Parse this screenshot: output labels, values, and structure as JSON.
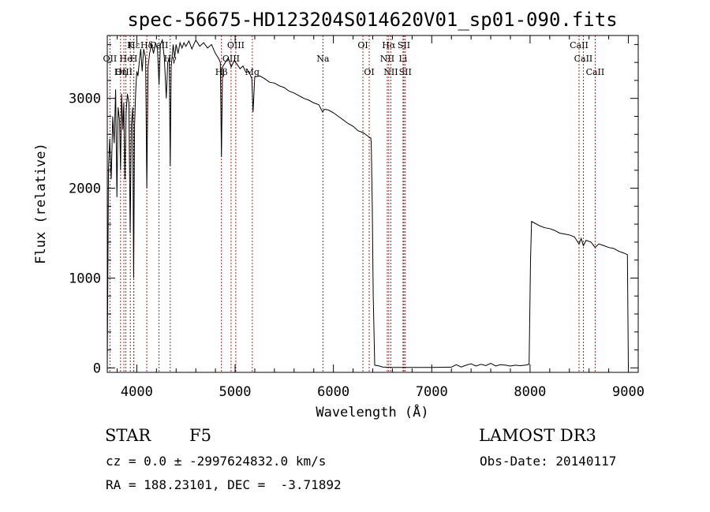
{
  "chart_data": {
    "type": "line",
    "title": "spec-56675-HD123204S014620V01_sp01-090.fits",
    "xlabel": "Wavelength (Å)",
    "ylabel": "Flux (relative)",
    "xlim": [
      3700,
      9100
    ],
    "ylim": [
      -50,
      3700
    ],
    "x_ticks": [
      4000,
      5000,
      6000,
      7000,
      8000,
      9000
    ],
    "y_ticks": [
      0,
      1000,
      2000,
      3000
    ],
    "series": [
      {
        "name": "flux",
        "points": [
          [
            3700,
            0
          ],
          [
            3712,
            2200
          ],
          [
            3725,
            2550
          ],
          [
            3740,
            2100
          ],
          [
            3755,
            2800
          ],
          [
            3770,
            2500
          ],
          [
            3785,
            3100
          ],
          [
            3798,
            1900
          ],
          [
            3810,
            2900
          ],
          [
            3825,
            2750
          ],
          [
            3835,
            2200
          ],
          [
            3845,
            3050
          ],
          [
            3858,
            2650
          ],
          [
            3868,
            2950
          ],
          [
            3880,
            2100
          ],
          [
            3892,
            2850
          ],
          [
            3905,
            3050
          ],
          [
            3920,
            2950
          ],
          [
            3933,
            1500
          ],
          [
            3945,
            2700
          ],
          [
            3958,
            2900
          ],
          [
            3968,
            1000
          ],
          [
            3978,
            2700
          ],
          [
            3990,
            3100
          ],
          [
            4000,
            3300
          ],
          [
            4012,
            3250
          ],
          [
            4025,
            3400
          ],
          [
            4040,
            3550
          ],
          [
            4055,
            3300
          ],
          [
            4070,
            3550
          ],
          [
            4090,
            3450
          ],
          [
            4102,
            2000
          ],
          [
            4115,
            3350
          ],
          [
            4130,
            3500
          ],
          [
            4150,
            3600
          ],
          [
            4170,
            3500
          ],
          [
            4190,
            3620
          ],
          [
            4210,
            3550
          ],
          [
            4226,
            3150
          ],
          [
            4240,
            3600
          ],
          [
            4260,
            3650
          ],
          [
            4280,
            3450
          ],
          [
            4300,
            3000
          ],
          [
            4315,
            3400
          ],
          [
            4330,
            3450
          ],
          [
            4340,
            2250
          ],
          [
            4350,
            3350
          ],
          [
            4370,
            3600
          ],
          [
            4385,
            3450
          ],
          [
            4400,
            3600
          ],
          [
            4420,
            3500
          ],
          [
            4440,
            3620
          ],
          [
            4460,
            3560
          ],
          [
            4480,
            3620
          ],
          [
            4500,
            3580
          ],
          [
            4530,
            3640
          ],
          [
            4560,
            3550
          ],
          [
            4600,
            3650
          ],
          [
            4640,
            3580
          ],
          [
            4680,
            3620
          ],
          [
            4720,
            3560
          ],
          [
            4760,
            3600
          ],
          [
            4800,
            3500
          ],
          [
            4830,
            3450
          ],
          [
            4850,
            3400
          ],
          [
            4861,
            2350
          ],
          [
            4872,
            3350
          ],
          [
            4900,
            3400
          ],
          [
            4930,
            3450
          ],
          [
            4960,
            3350
          ],
          [
            4990,
            3420
          ],
          [
            5020,
            3380
          ],
          [
            5050,
            3330
          ],
          [
            5080,
            3360
          ],
          [
            5110,
            3290
          ],
          [
            5140,
            3300
          ],
          [
            5170,
            3220
          ],
          [
            5183,
            2850
          ],
          [
            5200,
            3240
          ],
          [
            5250,
            3250
          ],
          [
            5300,
            3220
          ],
          [
            5350,
            3180
          ],
          [
            5400,
            3170
          ],
          [
            5450,
            3140
          ],
          [
            5500,
            3120
          ],
          [
            5550,
            3080
          ],
          [
            5600,
            3060
          ],
          [
            5650,
            3030
          ],
          [
            5700,
            3000
          ],
          [
            5750,
            2980
          ],
          [
            5800,
            2950
          ],
          [
            5850,
            2930
          ],
          [
            5890,
            2850
          ],
          [
            5910,
            2880
          ],
          [
            5950,
            2870
          ],
          [
            6000,
            2840
          ],
          [
            6050,
            2800
          ],
          [
            6100,
            2760
          ],
          [
            6150,
            2720
          ],
          [
            6200,
            2690
          ],
          [
            6250,
            2640
          ],
          [
            6300,
            2620
          ],
          [
            6350,
            2580
          ],
          [
            6370,
            2560
          ],
          [
            6380,
            2560
          ],
          [
            6385,
            2500
          ],
          [
            6395,
            1800
          ],
          [
            6405,
            800
          ],
          [
            6420,
            30
          ],
          [
            6470,
            20
          ],
          [
            6500,
            10
          ],
          [
            6600,
            5
          ],
          [
            6800,
            5
          ],
          [
            7000,
            5
          ],
          [
            7200,
            8
          ],
          [
            7250,
            35
          ],
          [
            7300,
            10
          ],
          [
            7350,
            30
          ],
          [
            7400,
            45
          ],
          [
            7450,
            20
          ],
          [
            7500,
            40
          ],
          [
            7550,
            25
          ],
          [
            7600,
            50
          ],
          [
            7650,
            20
          ],
          [
            7700,
            35
          ],
          [
            7750,
            30
          ],
          [
            7800,
            20
          ],
          [
            7850,
            30
          ],
          [
            7900,
            25
          ],
          [
            7950,
            30
          ],
          [
            7990,
            40
          ],
          [
            8005,
            1200
          ],
          [
            8015,
            1630
          ],
          [
            8050,
            1610
          ],
          [
            8100,
            1580
          ],
          [
            8150,
            1560
          ],
          [
            8200,
            1550
          ],
          [
            8250,
            1530
          ],
          [
            8300,
            1500
          ],
          [
            8350,
            1490
          ],
          [
            8400,
            1480
          ],
          [
            8450,
            1460
          ],
          [
            8498,
            1380
          ],
          [
            8520,
            1440
          ],
          [
            8542,
            1360
          ],
          [
            8570,
            1420
          ],
          [
            8620,
            1400
          ],
          [
            8662,
            1340
          ],
          [
            8700,
            1380
          ],
          [
            8750,
            1360
          ],
          [
            8800,
            1340
          ],
          [
            8850,
            1330
          ],
          [
            8900,
            1300
          ],
          [
            8950,
            1280
          ],
          [
            8990,
            1260
          ],
          [
            9000,
            0
          ]
        ]
      }
    ],
    "line_markers": [
      {
        "label": "Hδ",
        "x": 4102,
        "row": 1
      },
      {
        "label": "K",
        "x": 3934,
        "row": 1
      },
      {
        "label": "Hε",
        "x": 3970,
        "row": 1
      },
      {
        "label": "CaII",
        "x": 4226,
        "row": 1
      },
      {
        "label": "OIII",
        "x": 5007,
        "row": 1
      },
      {
        "label": "OI",
        "x": 6300,
        "row": 1
      },
      {
        "label": "Hα",
        "x": 6563,
        "row": 1
      },
      {
        "label": "SII",
        "x": 6717,
        "row": 1
      },
      {
        "label": "CaII",
        "x": 8498,
        "row": 1
      },
      {
        "label": "OII",
        "x": 3727,
        "row": 2
      },
      {
        "label": "He",
        "x": 3889,
        "row": 2
      },
      {
        "label": "H",
        "x": 3969,
        "row": 2
      },
      {
        "label": "Hγ",
        "x": 4340,
        "row": 2
      },
      {
        "label": "OIII",
        "x": 4959,
        "row": 2
      },
      {
        "label": "Na",
        "x": 5893,
        "row": 2
      },
      {
        "label": "NII",
        "x": 6548,
        "row": 2
      },
      {
        "label": "Li",
        "x": 6708,
        "row": 2
      },
      {
        "label": "CaII",
        "x": 8542,
        "row": 2
      },
      {
        "label": "OIII",
        "x": 3869,
        "row": 3
      },
      {
        "label": "Hη",
        "x": 3835,
        "row": 3
      },
      {
        "label": "Hβ",
        "x": 4861,
        "row": 3
      },
      {
        "label": "Mg",
        "x": 5175,
        "row": 3
      },
      {
        "label": "OI",
        "x": 6364,
        "row": 3
      },
      {
        "label": "NII",
        "x": 6584,
        "row": 3
      },
      {
        "label": "SII",
        "x": 6731,
        "row": 3
      },
      {
        "label": "CaII",
        "x": 8662,
        "row": 3
      }
    ],
    "colors": {
      "spectrum": "#000000",
      "markers": "#b22222",
      "axes": "#000000"
    }
  },
  "info": {
    "object_class": "STAR",
    "subclass": "F5",
    "survey": "LAMOST DR3",
    "cz": "cz = 0.0 ± -2997624832.0 km/s",
    "obs_date": "Obs-Date: 20140117",
    "coords": "RA = 188.23101, DEC =  -3.71892"
  }
}
